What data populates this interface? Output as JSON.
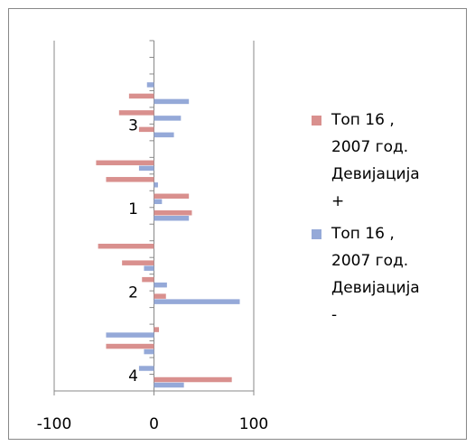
{
  "chart_data": {
    "type": "hbar",
    "categories": [
      null,
      null,
      null,
      null,
      null,
      "3",
      null,
      null,
      null,
      null,
      "1",
      null,
      null,
      null,
      null,
      "2",
      null,
      null,
      null,
      null,
      "4"
    ],
    "series": [
      {
        "name": "Топ 16 , 2007 год. Девијација +",
        "color": "#d9908e",
        "values": [
          null,
          null,
          null,
          -25,
          -35,
          -15,
          null,
          -58,
          -48,
          35,
          38,
          null,
          -56,
          -32,
          -12,
          12,
          null,
          5,
          -48,
          null,
          78
        ]
      },
      {
        "name": "Топ 16 , 2007 год. Девијација -",
        "color": "#95a9d8",
        "values": [
          null,
          null,
          -7,
          35,
          27,
          20,
          null,
          -15,
          4,
          8,
          35,
          null,
          null,
          -10,
          13,
          86,
          null,
          -48,
          -10,
          -15,
          30
        ]
      }
    ],
    "xlim": [
      -100,
      100
    ],
    "xticks": [
      -100,
      0,
      100
    ],
    "grid": true,
    "legend": "right"
  }
}
